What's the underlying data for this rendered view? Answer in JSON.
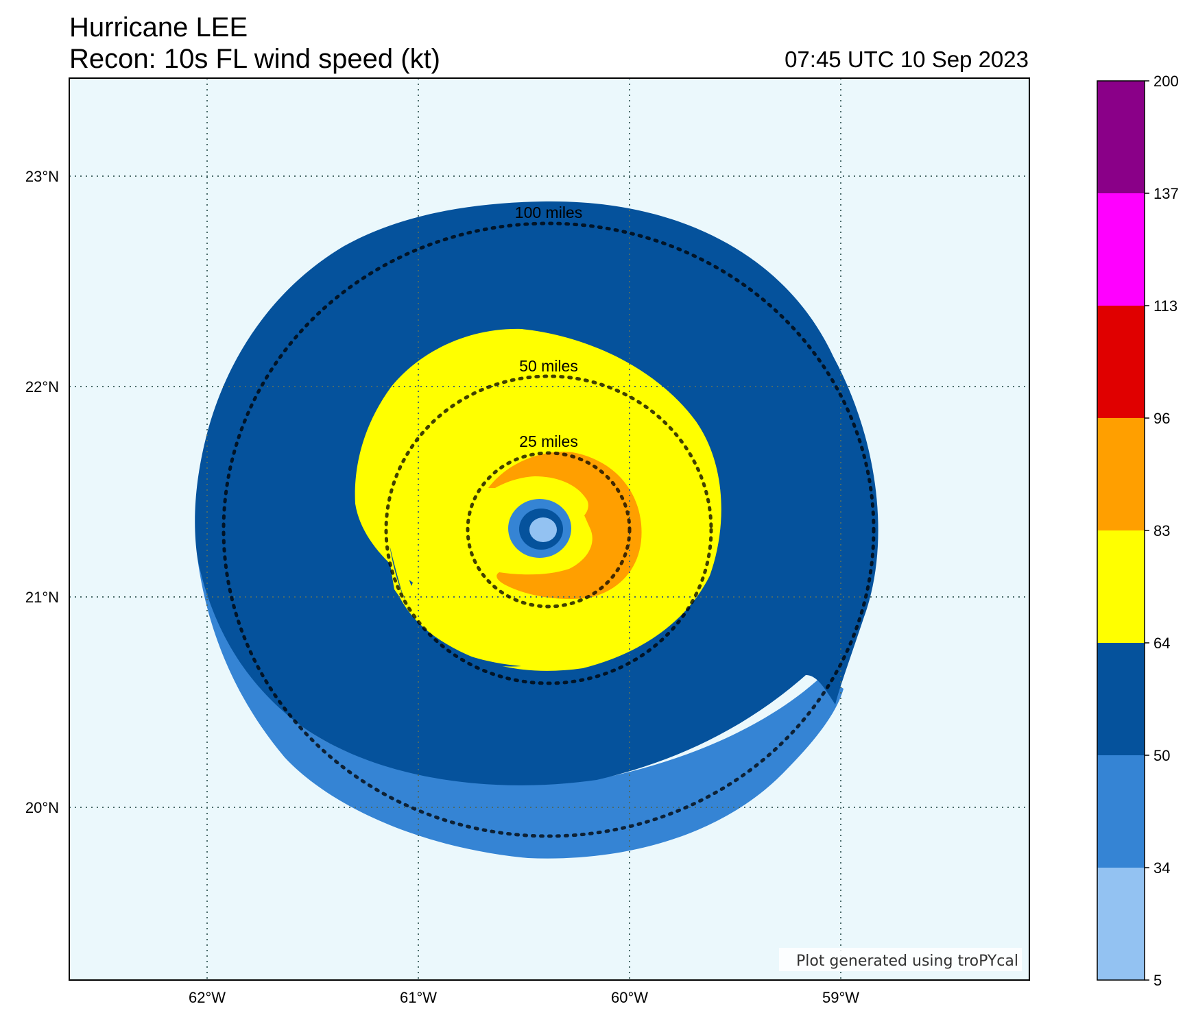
{
  "header": {
    "storm_title": "Hurricane LEE",
    "product_title": "Recon: 10s FL wind speed (kt)",
    "valid_time": "07:45 UTC 10 Sep 2023"
  },
  "map": {
    "lon_ticks": [
      "62°W",
      "61°W",
      "60°W",
      "59°W"
    ],
    "lat_ticks": [
      "23°N",
      "22°N",
      "21°N",
      "20°N"
    ],
    "range_rings": [
      "100 miles",
      "50 miles",
      "25 miles"
    ],
    "credit": "Plot generated using troPYcal",
    "background_color": "#ebf8fc"
  },
  "colorbar": {
    "labels": [
      "200",
      "137",
      "113",
      "96",
      "83",
      "64",
      "50",
      "34",
      "5"
    ],
    "colors": [
      "#8f94ee",
      "#3584d4",
      "#05529c",
      "#ffff00",
      "#ff9f00",
      "#e00000",
      "#ff00ff",
      "#8a0088"
    ],
    "bin_colors_bottom_to_top": [
      "#93c2f2",
      "#3584d4",
      "#05529c",
      "#ffff00",
      "#ff9f00",
      "#e00000",
      "#ff00ff",
      "#8a0088"
    ]
  }
}
